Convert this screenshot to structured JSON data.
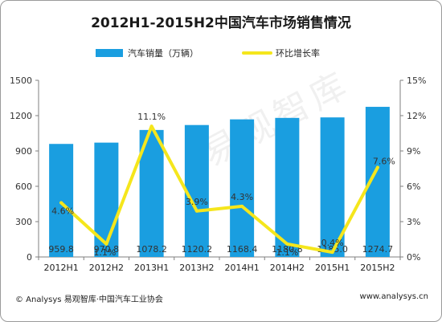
{
  "chart_data": {
    "type": "bar",
    "title": "2012H1-2015H2中国汽车市场销售情况",
    "categories": [
      "2012H1",
      "2012H2",
      "2013H1",
      "2013H2",
      "2014H1",
      "2014H2",
      "2015H1",
      "2015H2"
    ],
    "series": [
      {
        "name": "汽车销量（万辆）",
        "type": "bar",
        "axis": "left",
        "color": "#1a9ee0",
        "values": [
          959.8,
          970.8,
          1078.2,
          1120.2,
          1168.4,
          1180.8,
          1185.0,
          1274.7
        ],
        "labels": [
          "959.8",
          "970.8",
          "1078.2",
          "1120.2",
          "1168.4",
          "1180.8",
          "1185.0",
          "1274.7"
        ]
      },
      {
        "name": "环比增长率",
        "type": "line",
        "axis": "right",
        "color": "#f5e61c",
        "values": [
          4.6,
          1.1,
          11.1,
          3.9,
          4.3,
          1.1,
          0.4,
          7.6
        ],
        "labels": [
          "4.6%",
          "1.1%",
          "11.1%",
          "3.9%",
          "4.3%",
          "1.1%",
          "0.4%",
          "7.6%"
        ]
      }
    ],
    "y_left": {
      "min": 0,
      "max": 1500,
      "ticks": [
        "0",
        "300",
        "600",
        "900",
        "1200",
        "1500"
      ]
    },
    "y_right": {
      "min": 0,
      "max": 15,
      "ticks": [
        "0%",
        "3%",
        "6%",
        "9%",
        "12%",
        "15%"
      ]
    },
    "legend_position": "top",
    "grid": false
  },
  "watermark": "易观智库",
  "footer": {
    "left": "© Analysys 易观智库·中国汽车工业协会",
    "right": "www.analysys.cn"
  }
}
